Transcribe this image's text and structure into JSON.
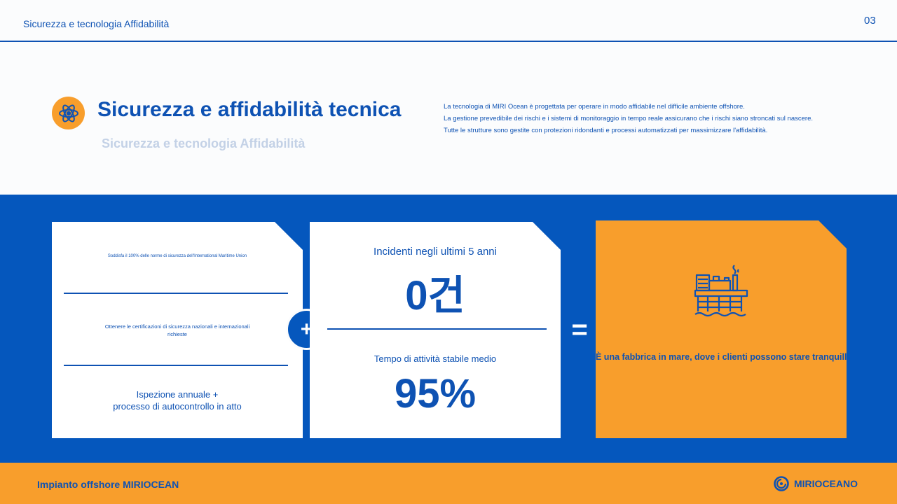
{
  "header": {
    "title": "Sicurezza e tecnologia Affidabilità",
    "page_number": "03"
  },
  "section": {
    "icon": "atom-icon",
    "title": "Sicurezza e affidabilità tecnica",
    "subtitle": "Sicurezza e tecnologia Affidabilità",
    "description": [
      "La tecnologia di MIRI Ocean è progettata per operare in modo affidabile nel difficile ambiente offshore.",
      "La gestione prevedibile dei rischi e i sistemi di monitoraggio in tempo reale assicurano che i rischi siano stroncati sul nascere.",
      "Tutte le strutture sono gestite con protezioni ridondanti e processi automatizzati per massimizzare l'affidabilità."
    ]
  },
  "cards": {
    "left": {
      "note1": "Soddisfa il 100% delle norme di sicurezza dell'International Maritime Union",
      "note2": "Ottenere le certificazioni di sicurezza nazionali e internazionali richieste",
      "note3_line1": "Ispezione annuale +",
      "note3_line2": "processo di autocontrollo in atto"
    },
    "middle": {
      "stat1_label": "Incidenti negli ultimi 5 anni",
      "stat1_value": "0건",
      "stat2_label": "Tempo di attività stabile medio",
      "stat2_value": "95%"
    },
    "right": {
      "icon": "offshore-platform-icon",
      "caption": "È una fabbrica in mare, dove i clienti possono stare tranquilli."
    },
    "operators": {
      "plus": "+",
      "equals": "="
    }
  },
  "footer": {
    "title": "Impianto offshore MIRIOCEAN",
    "logo_text": "MIRIOCEANO"
  },
  "colors": {
    "primary_blue": "#0e52b3",
    "band_blue": "#0557bd",
    "accent_orange": "#f89e2c",
    "background": "#fbfcfd"
  }
}
